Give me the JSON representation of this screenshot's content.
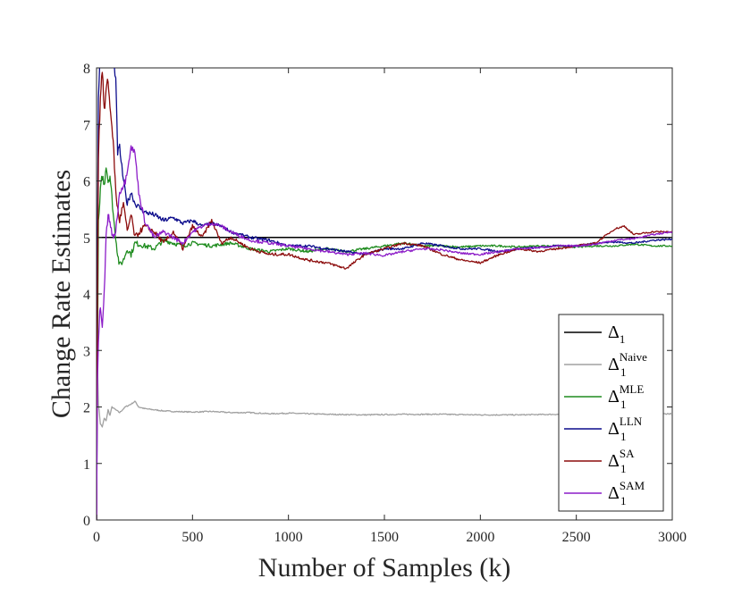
{
  "chart_data": {
    "type": "line",
    "title": "",
    "xlabel": "Number of Samples (k)",
    "ylabel": "Change Rate Estimates",
    "xlim": [
      0,
      3000
    ],
    "ylim": [
      0,
      8
    ],
    "xticks": [
      0,
      500,
      1000,
      1500,
      2000,
      2500,
      3000
    ],
    "yticks": [
      0,
      1,
      2,
      3,
      4,
      5,
      6,
      7,
      8
    ],
    "grid": false,
    "legend_position": "bottom-right",
    "series": [
      {
        "name": "Δ1",
        "legend_base": "Δ",
        "legend_sub": "1",
        "legend_sup": "",
        "color": "#000000",
        "x": [
          0,
          3000
        ],
        "y": [
          5,
          5
        ]
      },
      {
        "name": "Δ1 Naive",
        "legend_base": "Δ",
        "legend_sub": "1",
        "legend_sup": "Naive",
        "color": "#a0a0a0",
        "x": [
          0,
          5,
          10,
          20,
          30,
          40,
          50,
          60,
          70,
          80,
          100,
          120,
          150,
          180,
          200,
          220,
          250,
          300,
          350,
          400,
          500,
          600,
          700,
          800,
          900,
          1000,
          1200,
          1400,
          1600,
          1800,
          2000,
          2200,
          2400,
          2600,
          2800,
          3000
        ],
        "y": [
          0,
          2.7,
          2.05,
          1.7,
          1.65,
          1.8,
          1.75,
          1.95,
          1.85,
          2.0,
          1.95,
          1.9,
          2.0,
          2.05,
          2.1,
          2.0,
          1.97,
          1.95,
          1.93,
          1.92,
          1.91,
          1.92,
          1.9,
          1.9,
          1.88,
          1.89,
          1.87,
          1.86,
          1.87,
          1.87,
          1.86,
          1.86,
          1.87,
          1.87,
          1.87,
          1.88
        ]
      },
      {
        "name": "Δ1 MLE",
        "legend_base": "Δ",
        "legend_sub": "1",
        "legend_sup": "MLE",
        "color": "#1f8c1f",
        "x": [
          0,
          5,
          10,
          20,
          30,
          40,
          50,
          60,
          70,
          80,
          90,
          100,
          110,
          120,
          140,
          160,
          180,
          200,
          250,
          300,
          350,
          400,
          450,
          500,
          600,
          700,
          800,
          900,
          1000,
          1100,
          1200,
          1300,
          1400,
          1500,
          1600,
          1700,
          1800,
          1900,
          2000,
          2100,
          2200,
          2300,
          2400,
          2500,
          2600,
          2700,
          2800,
          2900,
          3000
        ],
        "y": [
          0,
          3.0,
          5.2,
          5.8,
          6.1,
          5.9,
          6.3,
          6.0,
          6.1,
          5.7,
          5.3,
          5.0,
          4.7,
          4.5,
          4.6,
          4.8,
          4.7,
          4.9,
          4.85,
          4.8,
          4.95,
          4.9,
          4.85,
          4.9,
          4.85,
          4.9,
          4.8,
          4.75,
          4.8,
          4.75,
          4.8,
          4.75,
          4.8,
          4.85,
          4.9,
          4.85,
          4.85,
          4.83,
          4.85,
          4.85,
          4.83,
          4.85,
          4.85,
          4.83,
          4.85,
          4.85,
          4.88,
          4.85,
          4.85
        ]
      },
      {
        "name": "Δ1 LLN",
        "legend_base": "Δ",
        "legend_sub": "1",
        "legend_sup": "LLN",
        "color": "#0c0c8c",
        "x": [
          0,
          5,
          10,
          20,
          30,
          40,
          50,
          60,
          80,
          100,
          110,
          120,
          140,
          160,
          180,
          200,
          250,
          300,
          350,
          400,
          450,
          500,
          550,
          600,
          650,
          700,
          800,
          900,
          1000,
          1100,
          1200,
          1300,
          1400,
          1500,
          1600,
          1700,
          1800,
          1900,
          2000,
          2100,
          2200,
          2300,
          2400,
          2500,
          2600,
          2700,
          2800,
          2900,
          3000
        ],
        "y": [
          0,
          5.0,
          7.5,
          8.3,
          9.0,
          8.8,
          8.5,
          8.1,
          8.4,
          7.8,
          6.5,
          6.6,
          6.0,
          5.6,
          5.8,
          5.6,
          5.45,
          5.4,
          5.3,
          5.35,
          5.25,
          5.3,
          5.2,
          5.25,
          5.2,
          5.1,
          5.0,
          4.95,
          4.85,
          4.85,
          4.8,
          4.75,
          4.7,
          4.8,
          4.8,
          4.9,
          4.85,
          4.8,
          4.8,
          4.75,
          4.8,
          4.82,
          4.85,
          4.85,
          4.9,
          4.92,
          4.9,
          4.95,
          4.97
        ]
      },
      {
        "name": "Δ1 SA",
        "legend_base": "Δ",
        "legend_sub": "1",
        "legend_sup": "SA",
        "color": "#8c0c0c",
        "x": [
          0,
          5,
          10,
          20,
          30,
          40,
          50,
          60,
          70,
          80,
          90,
          100,
          110,
          120,
          140,
          160,
          180,
          200,
          250,
          300,
          350,
          400,
          450,
          500,
          550,
          600,
          650,
          700,
          800,
          900,
          1000,
          1100,
          1200,
          1300,
          1400,
          1500,
          1600,
          1700,
          1800,
          1900,
          2000,
          2100,
          2200,
          2300,
          2400,
          2500,
          2600,
          2700,
          2750,
          2800,
          2900,
          3000
        ],
        "y": [
          0,
          4.0,
          6.5,
          7.5,
          8.0,
          7.2,
          7.6,
          7.8,
          7.3,
          7.0,
          6.5,
          5.8,
          5.5,
          5.3,
          5.6,
          5.1,
          5.4,
          5.0,
          5.2,
          5.1,
          4.9,
          5.1,
          4.8,
          5.2,
          5.0,
          5.3,
          4.9,
          5.0,
          4.8,
          4.7,
          4.7,
          4.6,
          4.55,
          4.45,
          4.7,
          4.8,
          4.9,
          4.85,
          4.7,
          4.6,
          4.55,
          4.7,
          4.8,
          4.75,
          4.8,
          4.85,
          4.9,
          5.15,
          5.2,
          5.05,
          5.1,
          5.1
        ]
      },
      {
        "name": "Δ1 SAM",
        "legend_base": "Δ",
        "legend_sub": "1",
        "legend_sup": "SAM",
        "color": "#8c1cc8",
        "x": [
          0,
          5,
          10,
          20,
          25,
          30,
          40,
          50,
          60,
          70,
          80,
          100,
          120,
          150,
          180,
          200,
          220,
          250,
          300,
          350,
          400,
          450,
          500,
          550,
          600,
          650,
          700,
          800,
          900,
          1000,
          1100,
          1200,
          1300,
          1400,
          1500,
          1600,
          1700,
          1800,
          1900,
          2000,
          2100,
          2200,
          2300,
          2400,
          2500,
          2600,
          2700,
          2800,
          2900,
          3000
        ],
        "y": [
          0,
          2.5,
          3.2,
          3.8,
          3.5,
          3.45,
          4.0,
          5.0,
          5.4,
          5.3,
          5.0,
          5.1,
          5.8,
          6.0,
          6.6,
          6.5,
          5.8,
          5.3,
          5.0,
          5.1,
          5.0,
          4.9,
          5.1,
          5.2,
          5.25,
          5.2,
          5.1,
          4.95,
          4.9,
          4.85,
          4.8,
          4.75,
          4.7,
          4.72,
          4.68,
          4.75,
          4.8,
          4.78,
          4.72,
          4.7,
          4.75,
          4.8,
          4.82,
          4.85,
          4.85,
          4.88,
          4.95,
          4.98,
          5.05,
          5.1
        ]
      }
    ]
  }
}
